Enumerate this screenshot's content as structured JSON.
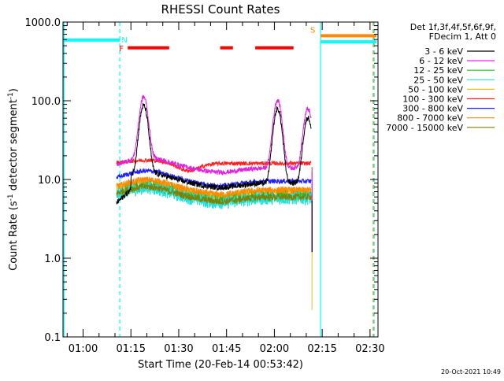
{
  "chart_data": {
    "type": "line",
    "title": "RHESSI Count Rates",
    "xlabel": "Start Time (20-Feb-14 00:53:42)",
    "ylabel_main": "Count Rate (s",
    "ylabel_sup1": "-1",
    "ylabel_mid": " detector segment",
    "ylabel_sup2": "-1",
    "ylabel_end": ")",
    "yscale": "log",
    "ylim": [
      0.1,
      1000
    ],
    "xlim_minutes": [
      53.7,
      152.5
    ],
    "x_ticks": [
      {
        "value": 60,
        "label": "01:00"
      },
      {
        "value": 75,
        "label": "01:15"
      },
      {
        "value": 90,
        "label": "01:30"
      },
      {
        "value": 105,
        "label": "01:45"
      },
      {
        "value": 120,
        "label": "02:00"
      },
      {
        "value": 135,
        "label": "02:15"
      },
      {
        "value": 150,
        "label": "02:30"
      }
    ],
    "y_ticks": [
      {
        "value": 0.1,
        "label": "0.1"
      },
      {
        "value": 1,
        "label": "1.0"
      },
      {
        "value": 10,
        "label": "10.0"
      },
      {
        "value": 100,
        "label": "100.0"
      },
      {
        "value": 1000,
        "label": "1000.0"
      }
    ],
    "legend_header": [
      "Det 1f,3f,4f,5f,6f,9f,",
      "FDecim 1, Att 0"
    ],
    "legend_placement": "right",
    "series": [
      {
        "name": "3 - 6 keV",
        "color": "#000000",
        "base": 6,
        "noise": 0.08
      },
      {
        "name": "6 - 12 keV",
        "color": "#e020e0",
        "base": 14,
        "noise": 0.07
      },
      {
        "name": "12 - 25 keV",
        "color": "#20c020",
        "base": 6.2,
        "noise": 0.18
      },
      {
        "name": "25 - 50 keV",
        "color": "#20e0e0",
        "base": 5.8,
        "noise": 0.2
      },
      {
        "name": "50 - 100 keV",
        "color": "#e8c020",
        "base": 7.0,
        "noise": 0.14
      },
      {
        "name": "100 - 300 keV",
        "color": "#ff2020",
        "base": 16,
        "noise": 0.06
      },
      {
        "name": "300 - 800 keV",
        "color": "#2020ff",
        "base": 9.5,
        "noise": 0.07
      },
      {
        "name": "800 - 7000 keV",
        "color": "#ff8800",
        "base": 7.3,
        "noise": 0.1
      },
      {
        "name": "7000 - 15000 keV",
        "color": "#808000",
        "base": 6.0,
        "noise": 0.1
      }
    ],
    "data_start_minute": 70.5,
    "data_end_minute": 131.5,
    "flare_peaks": [
      {
        "minute": 79,
        "value": 75
      },
      {
        "minute": 121,
        "value": 70
      },
      {
        "minute": 130.5,
        "value": 52
      }
    ],
    "flag_bars": [
      {
        "label": "F",
        "color": "#ff0000",
        "segments": [
          [
            74,
            87
          ],
          [
            103,
            107
          ],
          [
            114,
            126
          ]
        ],
        "level": 470
      },
      {
        "label": "S",
        "color": "#ff8800",
        "segments": [
          [
            134.5,
            152
          ]
        ],
        "level": 670
      },
      {
        "label": "N",
        "color": "#00ffff",
        "segments": [
          [
            53.7,
            71.5
          ]
        ],
        "level": 590
      }
    ],
    "night_bar_right": {
      "segments": [
        [
          134.5,
          152
        ]
      ],
      "level": 560,
      "color": "#00ffff"
    },
    "vertical_lines": [
      {
        "minute": 54.0,
        "color": "#00ffff",
        "style": "solid"
      },
      {
        "minute": 71.5,
        "color": "#00ffff",
        "style": "dashed"
      },
      {
        "minute": 134.5,
        "color": "#00ffff",
        "style": "solid"
      },
      {
        "minute": 151.0,
        "color": "#ff8800",
        "style": "dashed"
      },
      {
        "minute": 151.3,
        "color": "#00ffff",
        "style": "dashed"
      }
    ],
    "timestamp": "20-Oct-2021 10:49"
  }
}
